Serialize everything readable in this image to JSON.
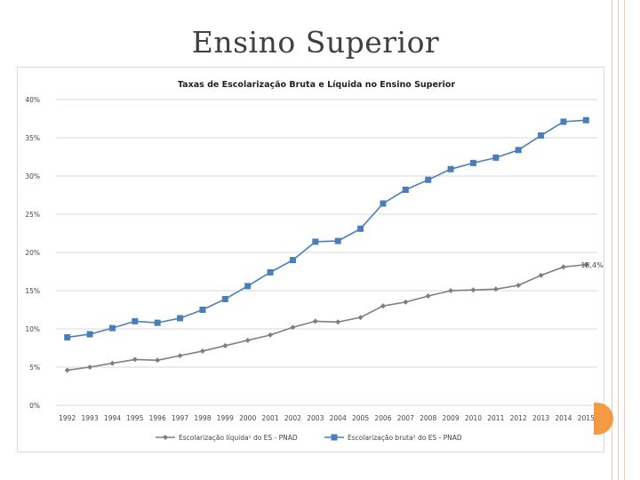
{
  "slide": {
    "title": "Ensino Superior"
  },
  "colors": {
    "frame": "#f2c9b6",
    "accent": "#f59a44",
    "series_bruta": "#4a7ebb",
    "series_liquida": "#7f7f7f",
    "grid": "#d9d9d9"
  },
  "chart_data": {
    "type": "line",
    "title": "Taxas de Escolarização Bruta e Líquida no Ensino Superior",
    "xlabel": "",
    "ylabel": "",
    "ylim": [
      0,
      40
    ],
    "yticks": [
      "0%",
      "5%",
      "10%",
      "15%",
      "20%",
      "25%",
      "30%",
      "35%",
      "40%"
    ],
    "grid": true,
    "legend_position": "bottom",
    "x": [
      "1992",
      "1993",
      "1994",
      "1995",
      "1996",
      "1997",
      "1998",
      "1999",
      "2000",
      "2001",
      "2002",
      "2003",
      "2004",
      "2005",
      "2006",
      "2007",
      "2008",
      "2009",
      "2010",
      "2011",
      "2012",
      "2013",
      "2014",
      "2015"
    ],
    "series": [
      {
        "name": "Escolarização líquida¹ do ES - PNAD",
        "marker": "diamond",
        "values": [
          4.6,
          5.0,
          5.5,
          6.0,
          5.9,
          6.5,
          7.1,
          7.8,
          8.5,
          9.2,
          10.2,
          11.0,
          10.9,
          11.5,
          13.0,
          13.5,
          14.3,
          15.0,
          15.1,
          15.2,
          15.7,
          17.0,
          18.1,
          18.4
        ],
        "end_label": "18,4%"
      },
      {
        "name": "Escolarização bruta² do ES - PNAD",
        "marker": "square",
        "values": [
          8.9,
          9.3,
          10.1,
          11.0,
          10.8,
          11.4,
          12.5,
          13.9,
          15.6,
          17.4,
          19.0,
          21.4,
          21.5,
          23.1,
          26.4,
          28.2,
          29.5,
          30.9,
          31.7,
          32.4,
          33.4,
          35.3,
          37.1,
          37.3
        ]
      }
    ]
  }
}
